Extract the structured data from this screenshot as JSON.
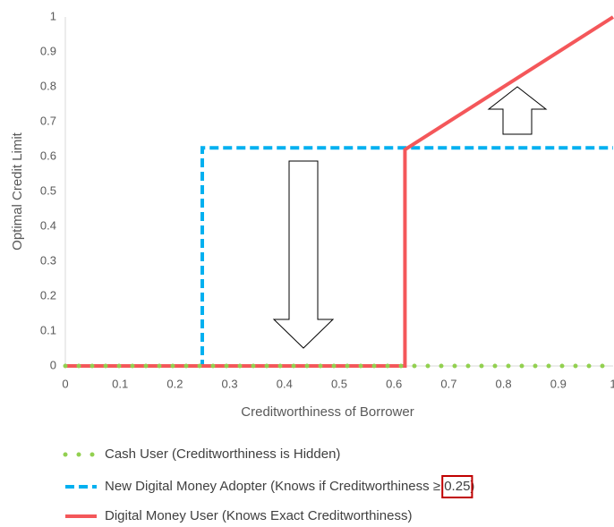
{
  "chart_data": {
    "type": "line",
    "xlabel": "Creditworthiness of Borrower",
    "ylabel": "Optimal Credit Limit",
    "xlim": [
      0,
      1
    ],
    "ylim": [
      0,
      1
    ],
    "xticks": [
      0,
      0.1,
      0.2,
      0.3,
      0.4,
      0.5,
      0.6,
      0.7,
      0.8,
      0.9,
      1
    ],
    "yticks": [
      0,
      0.1,
      0.2,
      0.3,
      0.4,
      0.5,
      0.6,
      0.7,
      0.8,
      0.9,
      1
    ],
    "grid": false,
    "legend": "bottom",
    "series": [
      {
        "name": "Cash User (Creditworthiness is Hidden)",
        "color": "#92d050",
        "style": "dotted",
        "x": [
          0,
          1
        ],
        "values": [
          0,
          0
        ]
      },
      {
        "name": "New Digital Money Adopter (Knows if Creditworthiness ≥ 0.25)",
        "color": "#00b0f0",
        "style": "dashed",
        "x": [
          0,
          0.25,
          0.25,
          1
        ],
        "values": [
          0,
          0,
          0.625,
          0.625
        ]
      },
      {
        "name": "Digital Money User (Knows Exact Creditworthiness)",
        "color": "#f4575a",
        "style": "solid",
        "x": [
          0,
          0.62,
          0.62,
          1
        ],
        "values": [
          0,
          0,
          0.62,
          1
        ]
      }
    ]
  }
}
